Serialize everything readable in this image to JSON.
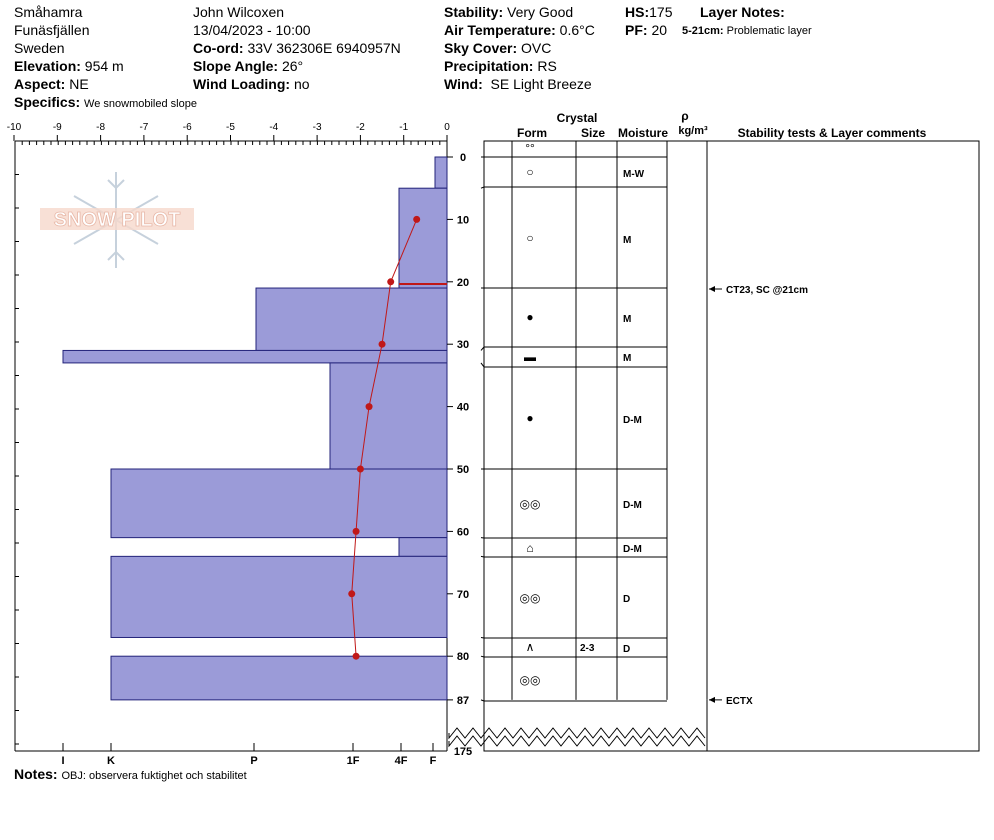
{
  "header": {
    "location": "Småhamra",
    "region": "Funäsfjällen",
    "country": "Sweden",
    "elevation_label": "Elevation:",
    "elevation": "954 m",
    "aspect_label": "Aspect:",
    "aspect": "NE",
    "specifics_label": "Specifics:",
    "specifics": "We snowmobiled slope",
    "observer": "John Wilcoxen",
    "datetime": "13/04/2023 - 10:00",
    "coord_label": "Co-ord:",
    "coord": "33V 362306E 6940957N",
    "slope_label": "Slope Angle:",
    "slope": "26°",
    "wind_loading_label": "Wind Loading:",
    "wind_loading": "no",
    "stability_label": "Stability:",
    "stability": "Very Good",
    "air_temp_label": "Air Temperature:",
    "air_temp": "0.6°C",
    "sky_label": "Sky Cover:",
    "sky": "OVC",
    "precip_label": "Precipitation:",
    "precip": "RS",
    "wind_label": "Wind:",
    "wind": "SE Light Breeze",
    "hs_label": "HS:",
    "hs": "175",
    "pf_label": "PF:",
    "pf": "20",
    "layer_notes_label": "Layer Notes:",
    "layer_note_depth": "5-21cm:",
    "layer_note_text": "Problematic layer"
  },
  "notes_label": "Notes:",
  "notes": "OBJ: observera fuktighet och stabilitet",
  "watermark": "SNOW PILOT",
  "table_headers": {
    "crystal": "Crystal",
    "form": "Form",
    "size": "Size",
    "moisture": "Moisture",
    "rho": "ρ",
    "density_unit": "kg/m³",
    "comments": "Stability tests & Layer comments"
  },
  "colors": {
    "hardness_fill": "#9b9bd8",
    "temp_line": "#c01818",
    "weak_layer_marker": "#c01818"
  },
  "chart_data": {
    "type": "snow_profile",
    "temperature_axis_ticks": [
      -10,
      -9,
      -8,
      -7,
      -6,
      -5,
      -4,
      -3,
      -2,
      -1,
      0
    ],
    "hardness_axis_labels": [
      "I",
      "K",
      "P",
      "1F",
      "4F",
      "F"
    ],
    "depth_ticks": [
      0,
      10,
      20,
      30,
      40,
      50,
      60,
      70,
      80,
      87
    ],
    "snow_depth_total": 175,
    "profile_bottom_depth": 87,
    "layers": [
      {
        "top": 0,
        "bottom": 5,
        "hardness": "F-",
        "form": "°°",
        "size": "",
        "moisture": ""
      },
      {
        "top": 5,
        "bottom": 21,
        "hardness": "4F",
        "form": "○",
        "size": "",
        "moisture": "M-W"
      },
      {
        "top": 21,
        "bottom": 31,
        "hardness": "P-",
        "form": "○",
        "size": "",
        "moisture": "M"
      },
      {
        "top": 31,
        "bottom": 33,
        "hardness": "I",
        "form": "●",
        "size": "",
        "moisture": "M"
      },
      {
        "top": 33,
        "bottom": 50,
        "hardness": "1F+",
        "form": "▬",
        "size": "",
        "moisture": "M"
      },
      {
        "top": 50,
        "bottom": 61,
        "hardness": "K",
        "form": "●",
        "size": "",
        "moisture": "D-M"
      },
      {
        "top": 61,
        "bottom": 64,
        "hardness": "4F",
        "form": "◎◎",
        "size": "",
        "moisture": "D-M"
      },
      {
        "top": 64,
        "bottom": 77,
        "hardness": "K",
        "form": "⌂",
        "size": "",
        "moisture": "D-M"
      },
      {
        "top": 77,
        "bottom": 80,
        "hardness": "F",
        "form": "◎◎",
        "size": "",
        "moisture": "D"
      },
      {
        "top": 80,
        "bottom": 87,
        "hardness": "K",
        "form": "∧",
        "size": "2-3",
        "moisture": "D"
      }
    ],
    "form_symbols": [
      "°°",
      "○",
      "○",
      "●",
      "▬",
      "●",
      "◎◎",
      "⌂",
      "◎◎",
      "∧",
      "◎◎"
    ],
    "moisture_labels": [
      "M-W",
      "M",
      "M",
      "M",
      "D-M",
      "D-M",
      "D-M",
      "D",
      "D"
    ],
    "size_labels": [
      "2-3"
    ],
    "temperature_profile": [
      {
        "depth": 10,
        "temp": -0.7
      },
      {
        "depth": 20,
        "temp": -1.3
      },
      {
        "depth": 30,
        "temp": -1.5
      },
      {
        "depth": 40,
        "temp": -1.8
      },
      {
        "depth": 50,
        "temp": -2.0
      },
      {
        "depth": 60,
        "temp": -2.1
      },
      {
        "depth": 70,
        "temp": -2.2
      },
      {
        "depth": 80,
        "temp": -2.1
      }
    ],
    "stability_tests": [
      {
        "depth": 21,
        "result": "CT23, SC @21cm"
      },
      {
        "depth": 87,
        "result": "ECTX"
      }
    ]
  }
}
